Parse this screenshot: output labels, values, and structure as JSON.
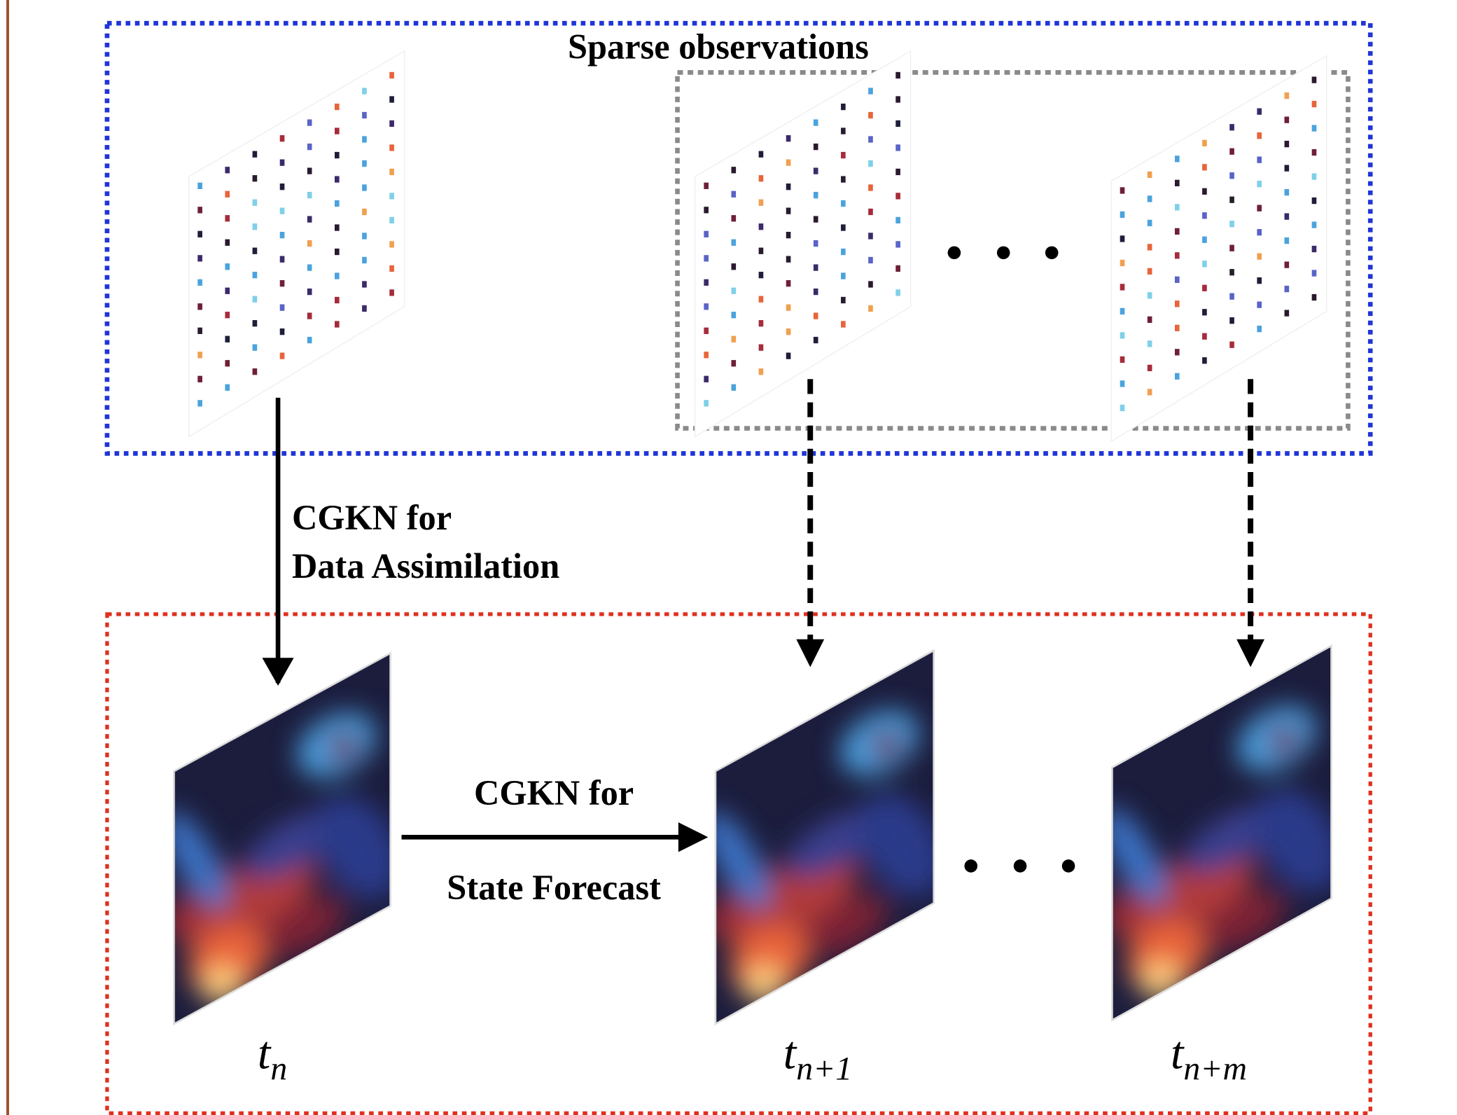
{
  "header": {
    "title": "Sparse observations"
  },
  "arrows": {
    "assimilation": [
      "CGKN for",
      "Data Assimilation"
    ],
    "forecast": [
      "CGKN for",
      "State Forecast"
    ]
  },
  "time_labels": [
    {
      "base": "t",
      "sub": "n"
    },
    {
      "base": "t",
      "sub": "n+1"
    },
    {
      "base": "t",
      "sub": "n+m"
    }
  ]
}
